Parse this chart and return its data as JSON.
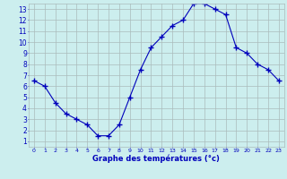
{
  "x": [
    0,
    1,
    2,
    3,
    4,
    5,
    6,
    7,
    8,
    9,
    10,
    11,
    12,
    13,
    14,
    15,
    16,
    17,
    18,
    19,
    20,
    21,
    22,
    23
  ],
  "y": [
    6.5,
    6.0,
    4.5,
    3.5,
    3.0,
    2.5,
    1.5,
    1.5,
    2.5,
    5.0,
    7.5,
    9.5,
    10.5,
    11.5,
    12.0,
    13.5,
    13.5,
    13.0,
    12.5,
    9.5,
    9.0,
    8.0,
    7.5,
    6.5
  ],
  "line_color": "#0000bb",
  "marker": "+",
  "marker_size": 4,
  "marker_lw": 1.0,
  "bg_color": "#cceeee",
  "grid_color": "#aabbbb",
  "xlabel": "Graphe des températures (°c)",
  "xlabel_color": "#0000bb",
  "tick_color": "#0000bb",
  "ylim_min": 0.5,
  "ylim_max": 13.5,
  "xlim_min": -0.5,
  "xlim_max": 23.5,
  "yticks": [
    1,
    2,
    3,
    4,
    5,
    6,
    7,
    8,
    9,
    10,
    11,
    12,
    13
  ],
  "xticks": [
    0,
    1,
    2,
    3,
    4,
    5,
    6,
    7,
    8,
    9,
    10,
    11,
    12,
    13,
    14,
    15,
    16,
    17,
    18,
    19,
    20,
    21,
    22,
    23
  ],
  "figsize": [
    3.2,
    2.0
  ],
  "dpi": 100
}
